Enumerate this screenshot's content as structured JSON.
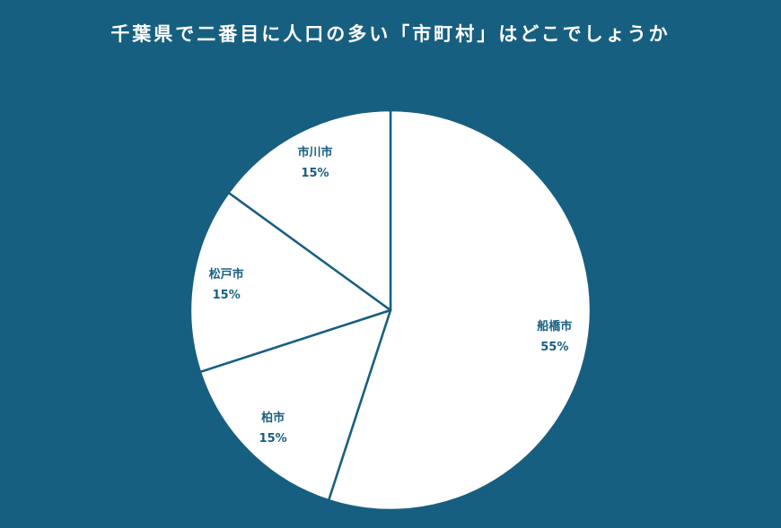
{
  "chart_data": {
    "type": "pie",
    "title": "千葉県で二番目に人口の多い「市町村」はどこでしょうか",
    "categories": [
      "船橋市",
      "柏市",
      "松戸市",
      "市川市"
    ],
    "values": [
      55,
      15,
      15,
      15
    ],
    "value_labels": [
      "55%",
      "15%",
      "15%",
      "15%"
    ],
    "slice_color": "#ffffff",
    "edge_color": "#175f80",
    "label_color": "#175f80",
    "start_angle": "12 o'clock",
    "direction": "clockwise"
  },
  "colors": {
    "background": "#175f80",
    "title": "#ffffff"
  }
}
